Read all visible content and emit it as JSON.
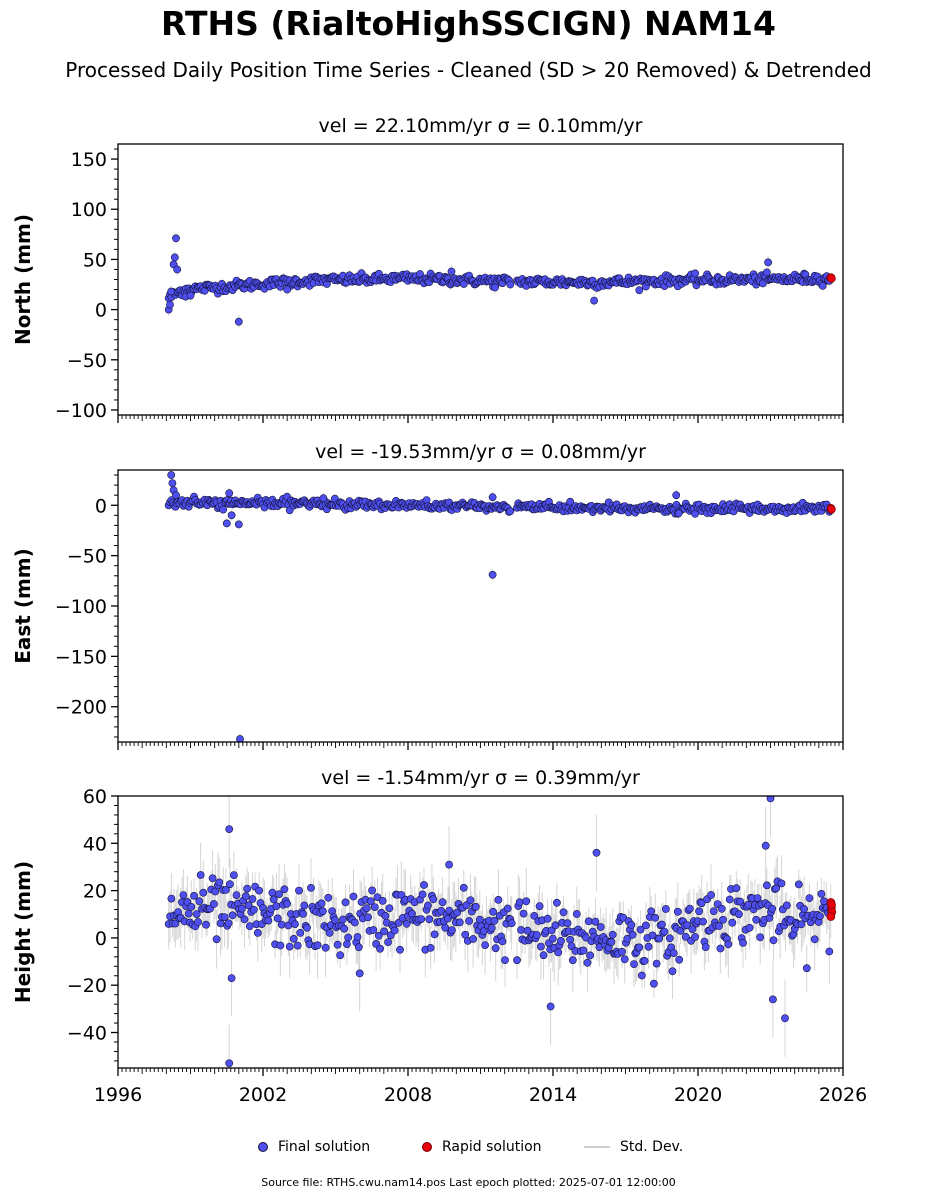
{
  "title": "RTHS (RialtoHighSSCIGN) NAM14",
  "subtitle": "Processed Daily Position Time Series - Cleaned (SD > 20 Removed) & Detrended",
  "legend": {
    "final_label": "Final solution",
    "rapid_label": "Rapid solution",
    "std_label": "Std. Dev."
  },
  "source_text": "Source file: RTHS.cwu.nam14.pos  Last epoch plotted: 2025-07-01 12:00:00",
  "colors": {
    "final": "#4f4ff0",
    "final_edge": "#14143c",
    "rapid": "#e8000b",
    "std": "#888888"
  },
  "chart_data": [
    {
      "type": "scatter",
      "panel": "north",
      "title": "vel = 22.10mm/yr   σ = 0.10mm/yr",
      "ylabel": "North (mm)",
      "xlabel": "",
      "xlim": [
        1996,
        2026
      ],
      "ylim": [
        -105,
        165
      ],
      "yticks": [
        -100,
        -50,
        0,
        50,
        100,
        150
      ],
      "xticks": [
        1996,
        2002,
        2008,
        2014,
        2020,
        2026
      ],
      "data_start": 1998.1,
      "data_end": 2025.5,
      "gaps": [
        [
          2012.25,
          2012.5
        ]
      ],
      "baseline": [
        [
          1998.1,
          12
        ],
        [
          1998.7,
          20
        ],
        [
          2001.0,
          24
        ],
        [
          2004.0,
          29
        ],
        [
          2008.0,
          31
        ],
        [
          2012.2,
          28
        ],
        [
          2016.0,
          27
        ],
        [
          2019.0,
          29
        ],
        [
          2025.5,
          31
        ]
      ],
      "scatter_sd": 2.5,
      "outliers": [
        {
          "x": 1998.1,
          "y": 0
        },
        {
          "x": 1998.15,
          "y": 5
        },
        {
          "x": 1998.2,
          "y": 18
        },
        {
          "x": 1998.3,
          "y": 45
        },
        {
          "x": 1998.35,
          "y": 52
        },
        {
          "x": 1998.4,
          "y": 71
        },
        {
          "x": 1998.45,
          "y": 40
        },
        {
          "x": 1998.8,
          "y": 13
        },
        {
          "x": 1999.0,
          "y": 14
        },
        {
          "x": 2001.0,
          "y": -12
        },
        {
          "x": 2003.0,
          "y": 20
        },
        {
          "x": 2015.7,
          "y": 9
        },
        {
          "x": 2022.9,
          "y": 47
        },
        {
          "x": 2011.6,
          "y": 22
        },
        {
          "x": 2009.8,
          "y": 38
        }
      ],
      "rapid": [
        {
          "x": 2025.5,
          "y": 32
        },
        {
          "x": 2025.52,
          "y": 31
        }
      ]
    },
    {
      "type": "scatter",
      "panel": "east",
      "title": "vel = -19.53mm/yr   σ = 0.08mm/yr",
      "ylabel": "East (mm)",
      "xlabel": "",
      "xlim": [
        1996,
        2026
      ],
      "ylim": [
        -235,
        35
      ],
      "yticks": [
        -200,
        -150,
        -100,
        -50,
        0
      ],
      "xticks": [
        1996,
        2002,
        2008,
        2014,
        2020,
        2026
      ],
      "data_start": 1998.1,
      "data_end": 2025.5,
      "gaps": [
        [
          2012.25,
          2012.5
        ]
      ],
      "baseline": [
        [
          1998.1,
          2
        ],
        [
          2002.0,
          2
        ],
        [
          2006.0,
          1
        ],
        [
          2012.2,
          -2
        ],
        [
          2016.0,
          -3
        ],
        [
          2019.0,
          -4
        ],
        [
          2025.5,
          -3
        ]
      ],
      "scatter_sd": 2.2,
      "outliers": [
        {
          "x": 1998.2,
          "y": 30
        },
        {
          "x": 1998.25,
          "y": 22
        },
        {
          "x": 1998.3,
          "y": 15
        },
        {
          "x": 1998.4,
          "y": 10
        },
        {
          "x": 2000.5,
          "y": -18
        },
        {
          "x": 2000.6,
          "y": 12
        },
        {
          "x": 2000.7,
          "y": -10
        },
        {
          "x": 2001.0,
          "y": -19
        },
        {
          "x": 2001.05,
          "y": -232
        },
        {
          "x": 2011.5,
          "y": -69
        },
        {
          "x": 2011.5,
          "y": 8
        },
        {
          "x": 2019.1,
          "y": 10
        },
        {
          "x": 2019.2,
          "y": -8
        },
        {
          "x": 2004.5,
          "y": 7
        }
      ],
      "rapid": [
        {
          "x": 2025.5,
          "y": -3
        },
        {
          "x": 2025.52,
          "y": -4
        }
      ]
    },
    {
      "type": "scatter",
      "panel": "height",
      "title": "vel = -1.54mm/yr   σ = 0.39mm/yr",
      "ylabel": "Height (mm)",
      "xlabel": "",
      "xlim": [
        1996,
        2026
      ],
      "ylim": [
        -55,
        60
      ],
      "yticks": [
        -40,
        -20,
        0,
        20,
        40,
        60
      ],
      "xticks": [
        1996,
        2002,
        2008,
        2014,
        2020,
        2026
      ],
      "data_start": 1998.1,
      "data_end": 2025.5,
      "gaps": [
        [
          2012.3,
          2012.5
        ]
      ],
      "baseline": [
        [
          1998.1,
          10
        ],
        [
          2000.0,
          12
        ],
        [
          2002.0,
          10
        ],
        [
          2005.0,
          5
        ],
        [
          2008.0,
          10
        ],
        [
          2012.2,
          5
        ],
        [
          2014.0,
          0
        ],
        [
          2017.0,
          0
        ],
        [
          2018.5,
          -3
        ],
        [
          2020.0,
          8
        ],
        [
          2023.0,
          12
        ],
        [
          2024.0,
          5
        ],
        [
          2025.5,
          10
        ]
      ],
      "scatter_sd": 6.5,
      "outliers": [
        {
          "x": 2000.6,
          "y": 46
        },
        {
          "x": 2000.6,
          "y": -53
        },
        {
          "x": 2000.7,
          "y": -17
        },
        {
          "x": 2013.9,
          "y": -29
        },
        {
          "x": 2015.8,
          "y": 36
        },
        {
          "x": 2023.0,
          "y": 59
        },
        {
          "x": 2022.8,
          "y": 39
        },
        {
          "x": 2023.1,
          "y": -26
        },
        {
          "x": 2023.6,
          "y": -34
        },
        {
          "x": 2009.7,
          "y": 31
        },
        {
          "x": 2006.0,
          "y": -15
        }
      ],
      "rapid": [
        {
          "x": 2025.5,
          "y": 15
        },
        {
          "x": 2025.52,
          "y": 13
        },
        {
          "x": 2025.54,
          "y": 11
        },
        {
          "x": 2025.5,
          "y": 9
        },
        {
          "x": 2025.53,
          "y": 14
        }
      ]
    }
  ]
}
